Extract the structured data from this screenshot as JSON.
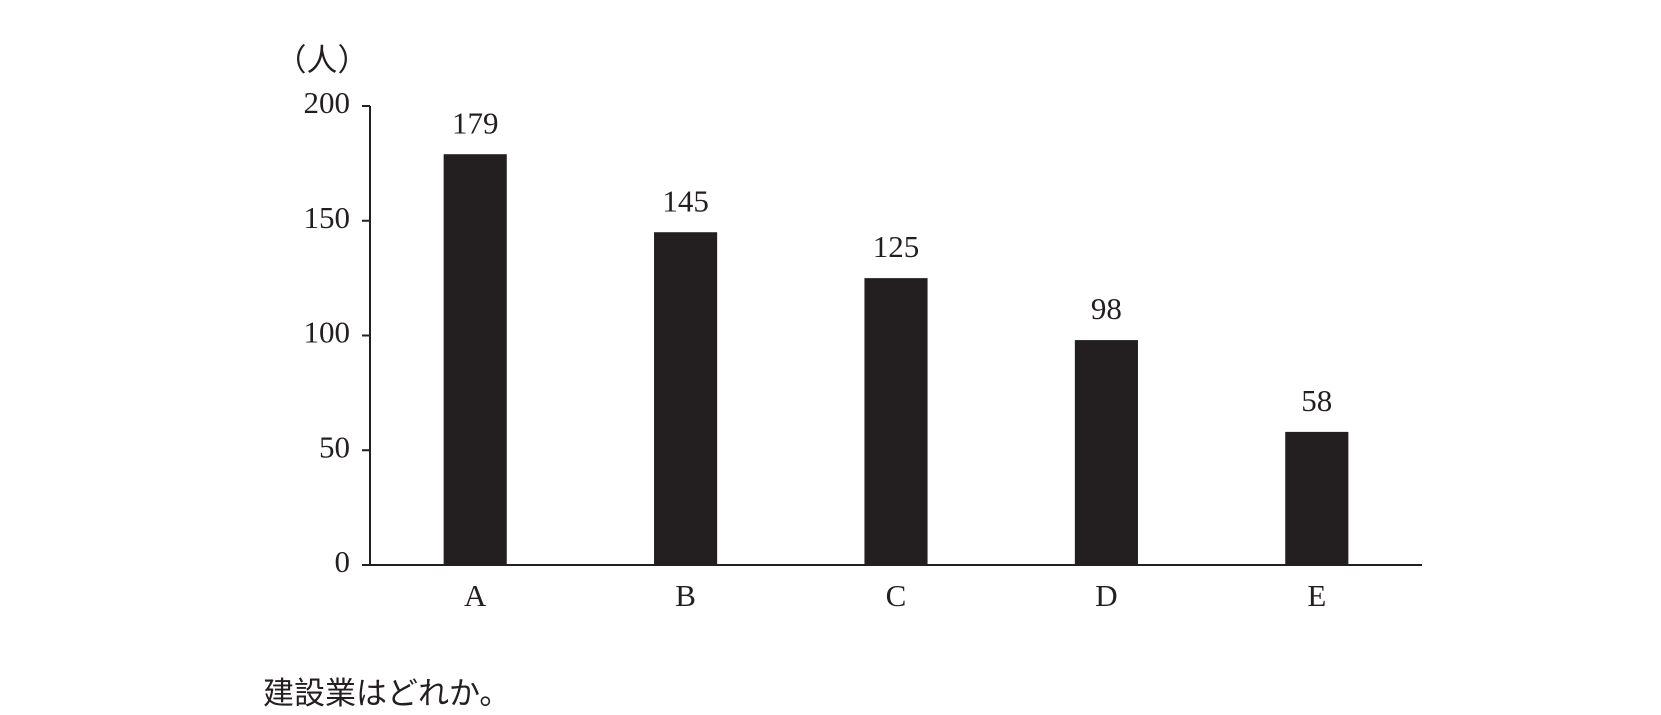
{
  "chart_data": {
    "type": "bar",
    "y_label": "（人）",
    "categories": [
      "A",
      "B",
      "C",
      "D",
      "E"
    ],
    "values": [
      179,
      145,
      125,
      98,
      58
    ],
    "color": "#231f20",
    "ylim": [
      0,
      200
    ],
    "yticks": [
      0,
      50,
      100,
      150,
      200
    ],
    "grid": false
  },
  "question": "建設業はどれか。"
}
